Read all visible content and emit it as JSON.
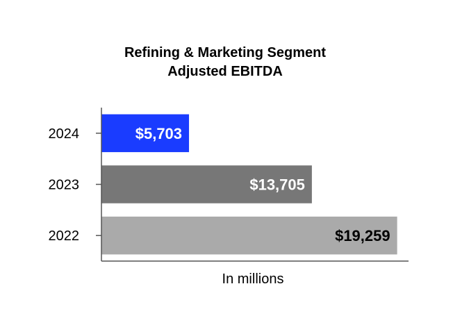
{
  "chart_data": {
    "type": "bar",
    "orientation": "horizontal",
    "title_lines": [
      "Refining & Marketing Segment",
      "Adjusted EBITDA"
    ],
    "categories": [
      "2024",
      "2023",
      "2022"
    ],
    "values": [
      5703,
      13705,
      19259
    ],
    "value_labels": [
      "$5,703",
      "$13,705",
      "$19,259"
    ],
    "bar_colors": [
      "#1a3cff",
      "#777777",
      "#aaaaaa"
    ],
    "label_colors": [
      "#ffffff",
      "#ffffff",
      "#000000"
    ],
    "xlabel": "In millions",
    "ylabel": "",
    "xlim": [
      0,
      20000
    ],
    "grid": false
  }
}
